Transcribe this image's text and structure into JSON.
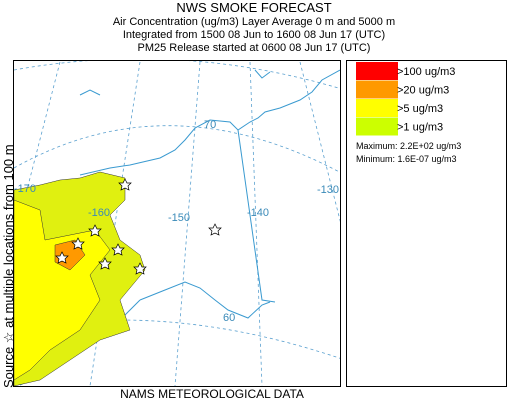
{
  "header": {
    "title": "NWS SMOKE FORECAST",
    "lines": [
      "Air Concentration (ug/m3) Layer Average    0 m and  5000 m",
      "Integrated from 1500 08 Jun to 1600 08 Jun 17 (UTC)",
      "PM25 Release started at 0600 08 Jun 17 (UTC)"
    ]
  },
  "side_label": "Source ☆  at multiple locations    from  100 m",
  "map": {
    "graticule_labels": [
      "-170",
      "-160",
      "-150",
      "-140",
      "-130",
      "70",
      "60"
    ]
  },
  "legend": {
    "entries": [
      {
        "label": ">100 ug/m3",
        "color": "#ff0000"
      },
      {
        "label": ">20 ug/m3",
        "color": "#ff9900"
      },
      {
        "label": ">5 ug/m3",
        "color": "#ffff00"
      },
      {
        "label": ">1 ug/m3",
        "color": "#ccff00"
      }
    ],
    "maximum": "Maximum: 2.2E+02 ug/m3",
    "minimum": "Minimum: 1.6E-07 ug/m3"
  },
  "footer": "NAMS METEOROLOGICAL DATA"
}
